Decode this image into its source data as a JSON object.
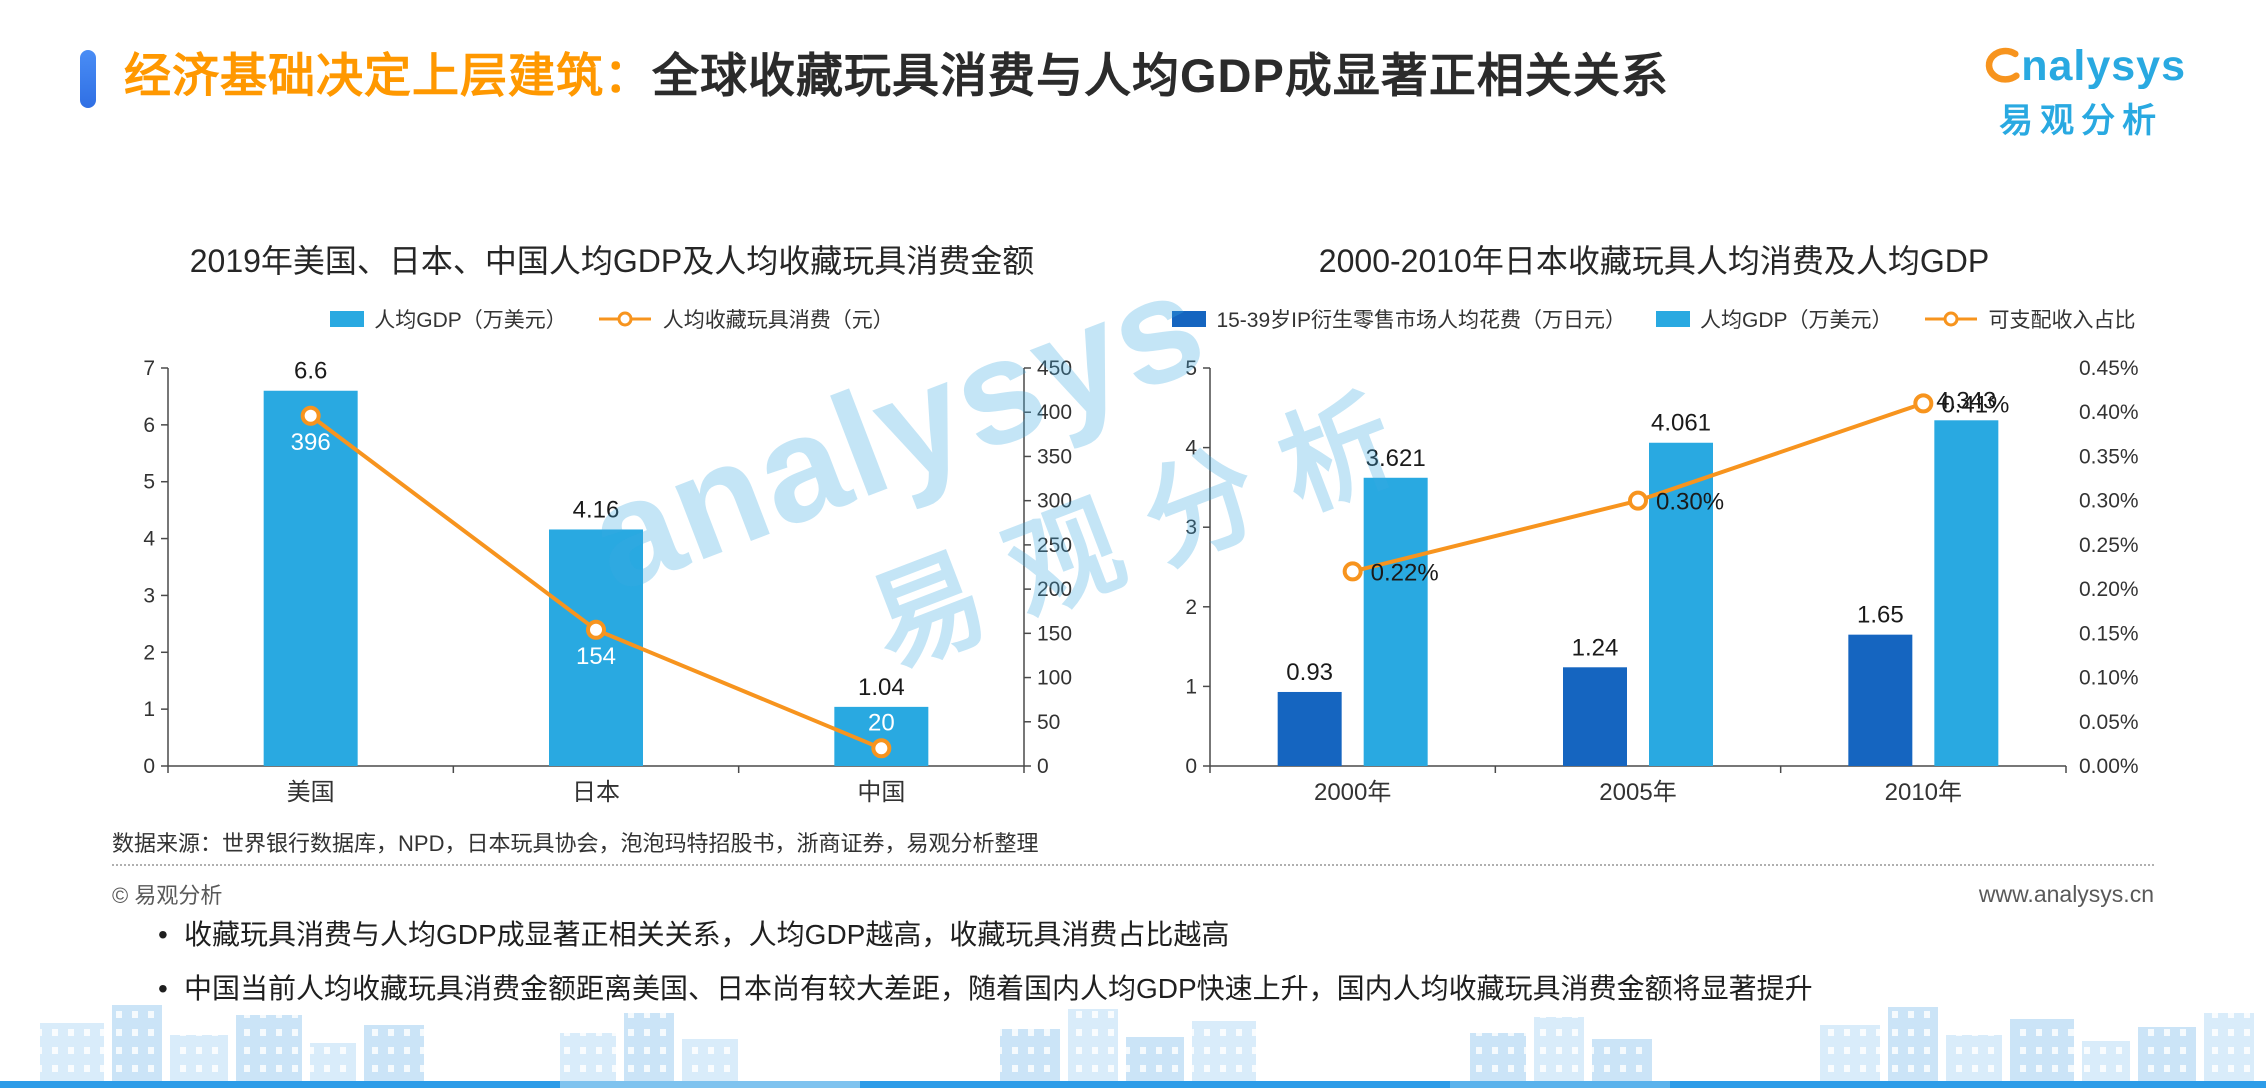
{
  "header": {
    "title_highlight": "经济基础决定上层建筑：",
    "title_rest": "全球收藏玩具消费与人均GDP成显著正相关关系"
  },
  "logo": {
    "brand_text": "nalysys",
    "brand_cn": "易观分析"
  },
  "watermark": {
    "line1": "analysys",
    "line2": "易观分析"
  },
  "footer": {
    "source": "数据来源：世界银行数据库，NPD，日本玩具协会，泡泡玛特招股书，浙商证券，易观分析整理",
    "copyright": "© 易观分析",
    "website": "www.analysys.cn"
  },
  "insights": [
    "收藏玩具消费与人均GDP成显著正相关关系，人均GDP越高，收藏玩具消费占比越高",
    "中国当前人均收藏玩具消费金额距离美国、日本尚有较大差距，随着国内人均GDP快速上升，国内人均收藏玩具消费金额将显著提升"
  ],
  "colors": {
    "accent_orange": "#F7941E",
    "title_orange": "#FF9800",
    "light_blue": "#29A9E1",
    "dark_blue": "#1565C0",
    "accent_bar_blue": "#337BF0",
    "watermark_blue": "#3DAAE0"
  },
  "chart_data": [
    {
      "type": "bar+line",
      "title": "2019年美国、日本、中国人均GDP及人均收藏玩具消费金额",
      "categories": [
        "美国",
        "日本",
        "中国"
      ],
      "series": [
        {
          "name": "人均GDP（万美元）",
          "kind": "bar",
          "axis": "left",
          "color": "#29A9E1",
          "values": [
            6.6,
            4.16,
            1.04
          ],
          "labels": [
            "6.6",
            "4.16",
            "1.04"
          ]
        },
        {
          "name": "人均收藏玩具消费（元）",
          "kind": "line",
          "axis": "right",
          "color": "#F7941E",
          "values": [
            396,
            154,
            20
          ],
          "labels": [
            "396",
            "154",
            "20"
          ],
          "label_style": "on-bar-white",
          "label_dy": [
            34,
            34,
            -18
          ]
        }
      ],
      "left_axis": {
        "min": 0,
        "max": 7,
        "step": 1,
        "format": "int"
      },
      "right_axis": {
        "min": 0,
        "max": 450,
        "step": 50,
        "format": "int",
        "line": true
      },
      "legend_position": "top",
      "grid": false
    },
    {
      "type": "bar+line",
      "title": "2000-2010年日本收藏玩具人均消费及人均GDP",
      "categories": [
        "2000年",
        "2005年",
        "2010年"
      ],
      "series": [
        {
          "name": "15-39岁IP衍生零售市场人均花费（万日元）",
          "kind": "bar",
          "axis": "left",
          "color": "#1565C0",
          "values": [
            0.93,
            1.24,
            1.65
          ],
          "labels": [
            "0.93",
            "1.24",
            "1.65"
          ]
        },
        {
          "name": "人均GDP（万美元）",
          "kind": "bar",
          "axis": "left",
          "color": "#29A9E1",
          "values": [
            3.621,
            4.061,
            4.343
          ],
          "labels": [
            "3.621",
            "4.061",
            "4.343"
          ]
        },
        {
          "name": "可支配收入占比",
          "kind": "line",
          "axis": "right",
          "color": "#F7941E",
          "values": [
            0.22,
            0.3,
            0.41
          ],
          "labels": [
            "0.22%",
            "0.30%",
            "0.41%"
          ],
          "label_style": "right-black"
        }
      ],
      "left_axis": {
        "min": 0,
        "max": 5,
        "step": 1,
        "format": "int"
      },
      "right_axis": {
        "min": 0,
        "max": 0.45,
        "step": 0.05,
        "format": "percent2",
        "line": false
      },
      "legend_position": "top",
      "grid": false
    }
  ]
}
